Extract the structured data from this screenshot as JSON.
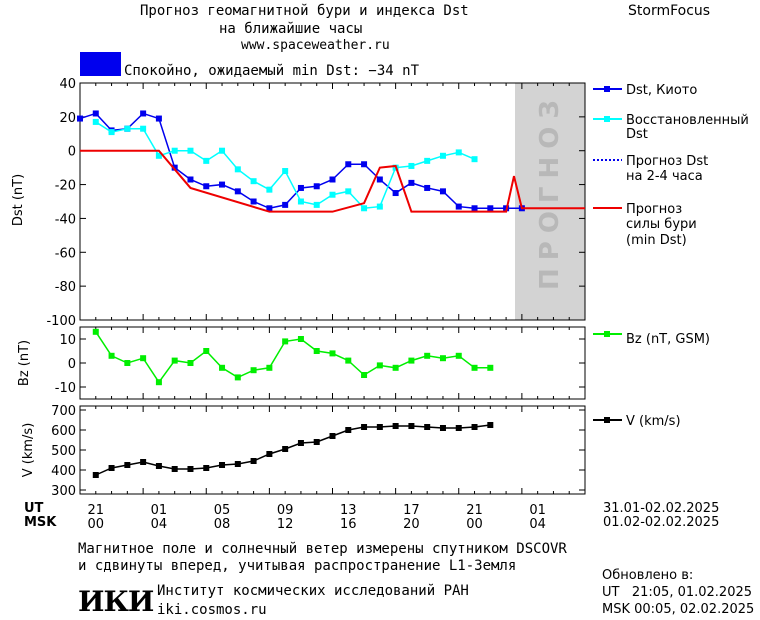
{
  "header": {
    "title_line1": "Прогноз геомагнитной бури и индекса Dst",
    "title_line2": "на ближайшие часы",
    "site": "www.spaceweather.ru",
    "brand": "StormFocus",
    "status": "Спокойно, ожидаемый min Dst: −34 nT",
    "status_color": "#0000ee"
  },
  "forecast_band_label": "ПРОГНОЗ",
  "legend": {
    "dst_kyoto": "Dst, Киото",
    "restored_1": "Восстановленный",
    "restored_2": "Dst",
    "fc24_1": "Прогноз Dst",
    "fc24_2": "на 2-4 часа",
    "storm_1": "Прогноз",
    "storm_2": "силы бури",
    "storm_3": "(min Dst)",
    "bz": "Bz (nT, GSM)",
    "v": "V (km/s)"
  },
  "time_axis": {
    "ut_label": "UT",
    "msk_label": "MSK",
    "ut_ticks": [
      "21",
      "01",
      "05",
      "09",
      "13",
      "17",
      "21",
      "01"
    ],
    "msk_ticks": [
      "00",
      "04",
      "08",
      "12",
      "16",
      "20",
      "00",
      "04"
    ],
    "ut_range": "31.01-02.02.2025",
    "msk_range": "01.02-02.02.2025"
  },
  "footer": {
    "note_1": "Магнитное поле и солнечный ветер измерены спутником DSCOVR",
    "note_2": "и сдвинуты вперед, учитывая распространение L1-Земля",
    "institute": "Институт космических исследований РАН",
    "institute_url": "iki.cosmos.ru",
    "logo": "ИКИ",
    "updated_label": "Обновлено в:",
    "updated_ut": "UT   21:05, 01.02.2025",
    "updated_msk": "MSK 00:05, 02.02.2025"
  },
  "chart_data": [
    {
      "type": "line",
      "ylabel": "Dst (nT)",
      "ylim": [
        -100,
        40
      ],
      "yticks": [
        40,
        20,
        0,
        -20,
        -40,
        -60,
        -80,
        -100
      ],
      "x_hours": [
        0,
        1,
        2,
        3,
        4,
        5,
        6,
        7,
        8,
        9,
        10,
        11,
        12,
        13,
        14,
        15,
        16,
        17,
        18,
        19,
        20,
        21,
        22,
        23,
        24,
        25,
        26,
        27,
        28,
        29,
        30,
        31,
        32
      ],
      "forecast_region_start": 28,
      "series": [
        {
          "name": "Dst, Киото",
          "color": "#0000ee",
          "style": "solid-square",
          "x": [
            0,
            1,
            2,
            3,
            4,
            5,
            6,
            7,
            8,
            9,
            10,
            11,
            12,
            13,
            14,
            15,
            16,
            17,
            18,
            19,
            20,
            21,
            22,
            23,
            24,
            25,
            26,
            27,
            28
          ],
          "y": [
            19,
            22,
            12,
            13,
            22,
            19,
            -10,
            -17,
            -21,
            -20,
            -24,
            -30,
            -34,
            -32,
            -22,
            -21,
            -17,
            -8,
            -8,
            -17,
            -25,
            -19,
            -22,
            -24,
            -33,
            -34,
            -34,
            -34,
            -34
          ]
        },
        {
          "name": "Восстановленный Dst",
          "color": "#00ffff",
          "style": "solid-square",
          "x": [
            1,
            2,
            3,
            4,
            5,
            6,
            7,
            8,
            9,
            10,
            11,
            12,
            13,
            14,
            15,
            16,
            17,
            18,
            19,
            20,
            21,
            22,
            23,
            24,
            25
          ],
          "y": [
            17,
            11,
            13,
            13,
            -3,
            0,
            0,
            -6,
            0,
            -11,
            -18,
            -23,
            -12,
            -30,
            -32,
            -26,
            -24,
            -34,
            -33,
            -10,
            -9,
            -6,
            -3,
            -1,
            -5
          ]
        },
        {
          "name": "Прогноз Dst на 2-4 часа",
          "color": "#0000ee",
          "style": "dotted",
          "x": [
            28,
            29,
            30,
            31,
            32
          ],
          "y": [
            -34,
            -34,
            -34,
            -34,
            -34
          ]
        },
        {
          "name": "Прогноз силы бури (min Dst)",
          "color": "#ee0000",
          "style": "step",
          "x": [
            0,
            5,
            7,
            12,
            16,
            18,
            19,
            20,
            21,
            24,
            27,
            27.5,
            28,
            32
          ],
          "y": [
            0,
            0,
            -22,
            -36,
            -36,
            -31,
            -10,
            -9,
            -36,
            -36,
            -36,
            -15,
            -34,
            -34
          ]
        }
      ]
    },
    {
      "type": "line",
      "ylabel": "Bz (nT)",
      "ylim": [
        -15,
        15
      ],
      "yticks": [
        10,
        0,
        -10
      ],
      "series": [
        {
          "name": "Bz (nT, GSM)",
          "color": "#00ee00",
          "x": [
            1,
            2,
            3,
            4,
            5,
            6,
            7,
            8,
            9,
            10,
            11,
            12,
            13,
            14,
            15,
            16,
            17,
            18,
            19,
            20,
            21,
            22,
            23,
            24,
            25,
            26
          ],
          "y": [
            13,
            3,
            0,
            2,
            -8,
            1,
            0,
            5,
            -2,
            -6,
            -3,
            -2,
            9,
            10,
            5,
            4,
            1,
            -5,
            -1,
            -2,
            1,
            3,
            2,
            3,
            -2,
            -2
          ]
        }
      ]
    },
    {
      "type": "line",
      "ylabel": "V (km/s)",
      "ylim": [
        280,
        720
      ],
      "yticks": [
        700,
        600,
        500,
        400,
        300
      ],
      "series": [
        {
          "name": "V (km/s)",
          "color": "#000000",
          "x": [
            1,
            2,
            3,
            4,
            5,
            6,
            7,
            8,
            9,
            10,
            11,
            12,
            13,
            14,
            15,
            16,
            17,
            18,
            19,
            20,
            21,
            22,
            23,
            24,
            25,
            26
          ],
          "y": [
            375,
            410,
            425,
            440,
            420,
            405,
            405,
            410,
            425,
            430,
            445,
            480,
            505,
            535,
            540,
            570,
            600,
            615,
            615,
            620,
            620,
            615,
            610,
            610,
            615,
            625
          ]
        }
      ]
    }
  ]
}
